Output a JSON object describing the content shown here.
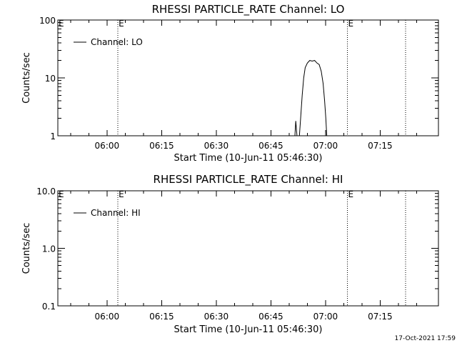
{
  "timestamp": "17-Oct-2021 17:59",
  "chart_data": [
    {
      "type": "line",
      "title": "RHESSI PARTICLE_RATE Channel: LO",
      "xlabel": "Start Time (10-Jun-11 05:46:30)",
      "ylabel": "Counts/sec",
      "yscale": "log",
      "xlim": [
        "05:46:30",
        "07:31:00"
      ],
      "ylim": [
        1,
        100
      ],
      "x_ticks": [
        "06:00",
        "06:15",
        "06:30",
        "06:45",
        "07:00",
        "07:15"
      ],
      "y_ticks": [
        {
          "value": 1,
          "label": "1"
        },
        {
          "value": 10,
          "label": "10"
        },
        {
          "value": 100,
          "label": "100"
        }
      ],
      "grid": false,
      "legend_position": "top-left",
      "markers": [
        {
          "time": "06:03:00",
          "label": "E"
        },
        {
          "time": "07:06:00",
          "label": "E"
        },
        {
          "time": "07:22:00",
          "label": ""
        }
      ],
      "series": [
        {
          "name": "Channel: LO",
          "x": [
            "06:51:35",
            "06:51:50",
            "06:52:10",
            "06:52:50",
            "06:53:10",
            "06:53:35",
            "06:54:00",
            "06:54:25",
            "06:55:00",
            "06:55:40",
            "06:56:20",
            "06:57:00",
            "06:57:40",
            "06:58:15",
            "06:58:50",
            "06:59:20",
            "06:59:45",
            "07:00:05",
            "07:00:20"
          ],
          "y": [
            1.0,
            1.8,
            1.0,
            1.0,
            2.0,
            5.0,
            10.0,
            15.0,
            18.0,
            20.0,
            19.5,
            20.0,
            18.0,
            17.0,
            13.0,
            8.0,
            4.0,
            2.0,
            1.0
          ]
        }
      ]
    },
    {
      "type": "line",
      "title": "RHESSI PARTICLE_RATE Channel: HI",
      "xlabel": "Start Time (10-Jun-11 05:46:30)",
      "ylabel": "Counts/sec",
      "yscale": "log",
      "xlim": [
        "05:46:30",
        "07:31:00"
      ],
      "ylim": [
        0.1,
        10
      ],
      "x_ticks": [
        "06:00",
        "06:15",
        "06:30",
        "06:45",
        "07:00",
        "07:15"
      ],
      "y_ticks": [
        {
          "value": 0.1,
          "label": "0.1"
        },
        {
          "value": 1,
          "label": "1.0"
        },
        {
          "value": 10,
          "label": "10.0"
        }
      ],
      "grid": false,
      "legend_position": "top-left",
      "markers": [
        {
          "time": "06:03:00",
          "label": "E"
        },
        {
          "time": "07:06:00",
          "label": "E"
        },
        {
          "time": "07:22:00",
          "label": ""
        }
      ],
      "series": [
        {
          "name": "Channel: HI",
          "x": [],
          "y": []
        }
      ]
    }
  ]
}
